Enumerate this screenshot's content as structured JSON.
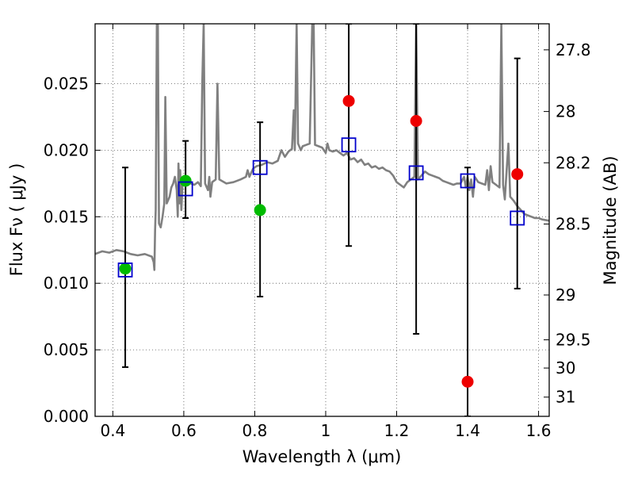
{
  "chart_data": {
    "type": "scatter",
    "title": "",
    "xlabel": "Wavelength  λ (μm)",
    "ylabel": "Flux  Fν  ( μJy )",
    "y2label": "Magnitude (AB)",
    "xlim": [
      0.35,
      1.63
    ],
    "ylim": [
      0.0,
      0.0295
    ],
    "grid": true,
    "x_ticks": [
      {
        "value": 0.4,
        "label": "0.4"
      },
      {
        "value": 0.6,
        "label": "0.6"
      },
      {
        "value": 0.8,
        "label": "0.8"
      },
      {
        "value": 1.0,
        "label": "1"
      },
      {
        "value": 1.2,
        "label": "1.2"
      },
      {
        "value": 1.4,
        "label": "1.4"
      },
      {
        "value": 1.6,
        "label": "1.6"
      }
    ],
    "y_ticks": [
      {
        "value": 0.0,
        "label": "0.000"
      },
      {
        "value": 0.005,
        "label": "0.005"
      },
      {
        "value": 0.01,
        "label": "0.010"
      },
      {
        "value": 0.015,
        "label": "0.015"
      },
      {
        "value": 0.02,
        "label": "0.020"
      },
      {
        "value": 0.025,
        "label": "0.025"
      }
    ],
    "y2_ticks": [
      {
        "value": 27.8,
        "label": "27.8"
      },
      {
        "value": 28.0,
        "label": "28"
      },
      {
        "value": 28.2,
        "label": "28.2"
      },
      {
        "value": 28.5,
        "label": "28.5"
      },
      {
        "value": 29.0,
        "label": "29"
      },
      {
        "value": 29.5,
        "label": "29.5"
      },
      {
        "value": 30.0,
        "label": "30"
      },
      {
        "value": 31.0,
        "label": "31"
      }
    ],
    "colors": {
      "spectrum": "#808080",
      "green": "#00bb00",
      "red": "#ee0000",
      "blue": "#0000cc",
      "errorbar": "#000000",
      "grid": "#555555"
    },
    "spectrum": [
      [
        0.35,
        0.0122
      ],
      [
        0.37,
        0.0124
      ],
      [
        0.39,
        0.0123
      ],
      [
        0.41,
        0.0125
      ],
      [
        0.43,
        0.0124
      ],
      [
        0.45,
        0.0122
      ],
      [
        0.47,
        0.0121
      ],
      [
        0.49,
        0.0122
      ],
      [
        0.51,
        0.012
      ],
      [
        0.515,
        0.0116
      ],
      [
        0.517,
        0.011
      ],
      [
        0.519,
        0.014
      ],
      [
        0.521,
        0.0155
      ],
      [
        0.524,
        0.0295
      ],
      [
        0.527,
        0.0295
      ],
      [
        0.53,
        0.0145
      ],
      [
        0.535,
        0.0142
      ],
      [
        0.54,
        0.015
      ],
      [
        0.545,
        0.016
      ],
      [
        0.548,
        0.024
      ],
      [
        0.552,
        0.016
      ],
      [
        0.56,
        0.0165
      ],
      [
        0.565,
        0.0172
      ],
      [
        0.57,
        0.0175
      ],
      [
        0.575,
        0.018
      ],
      [
        0.58,
        0.017
      ],
      [
        0.583,
        0.015
      ],
      [
        0.585,
        0.019
      ],
      [
        0.588,
        0.016
      ],
      [
        0.59,
        0.0185
      ],
      [
        0.593,
        0.0155
      ],
      [
        0.597,
        0.0178
      ],
      [
        0.61,
        0.0176
      ],
      [
        0.62,
        0.0175
      ],
      [
        0.63,
        0.0174
      ],
      [
        0.64,
        0.0176
      ],
      [
        0.648,
        0.0173
      ],
      [
        0.652,
        0.025
      ],
      [
        0.656,
        0.0295
      ],
      [
        0.66,
        0.0175
      ],
      [
        0.668,
        0.017
      ],
      [
        0.672,
        0.018
      ],
      [
        0.675,
        0.0165
      ],
      [
        0.68,
        0.0176
      ],
      [
        0.69,
        0.0178
      ],
      [
        0.695,
        0.025
      ],
      [
        0.7,
        0.0178
      ],
      [
        0.72,
        0.0175
      ],
      [
        0.74,
        0.0176
      ],
      [
        0.76,
        0.0178
      ],
      [
        0.775,
        0.018
      ],
      [
        0.78,
        0.0185
      ],
      [
        0.785,
        0.018
      ],
      [
        0.795,
        0.0186
      ],
      [
        0.805,
        0.0188
      ],
      [
        0.82,
        0.0189
      ],
      [
        0.835,
        0.0191
      ],
      [
        0.85,
        0.019
      ],
      [
        0.865,
        0.0192
      ],
      [
        0.875,
        0.02
      ],
      [
        0.885,
        0.0195
      ],
      [
        0.895,
        0.0199
      ],
      [
        0.905,
        0.0201
      ],
      [
        0.91,
        0.023
      ],
      [
        0.913,
        0.02
      ],
      [
        0.918,
        0.0295
      ],
      [
        0.922,
        0.0205
      ],
      [
        0.93,
        0.02
      ],
      [
        0.935,
        0.0203
      ],
      [
        0.945,
        0.0204
      ],
      [
        0.955,
        0.0205
      ],
      [
        0.962,
        0.0295
      ],
      [
        0.966,
        0.0295
      ],
      [
        0.97,
        0.0204
      ],
      [
        0.98,
        0.0203
      ],
      [
        0.99,
        0.0202
      ],
      [
        0.995,
        0.02
      ],
      [
        1.0,
        0.0198
      ],
      [
        1.005,
        0.0205
      ],
      [
        1.01,
        0.02
      ],
      [
        1.02,
        0.0199
      ],
      [
        1.03,
        0.02
      ],
      [
        1.04,
        0.0198
      ],
      [
        1.05,
        0.0196
      ],
      [
        1.06,
        0.0198
      ],
      [
        1.07,
        0.0193
      ],
      [
        1.08,
        0.0194
      ],
      [
        1.09,
        0.0191
      ],
      [
        1.1,
        0.0193
      ],
      [
        1.11,
        0.0189
      ],
      [
        1.12,
        0.019
      ],
      [
        1.13,
        0.0187
      ],
      [
        1.14,
        0.0188
      ],
      [
        1.15,
        0.0186
      ],
      [
        1.16,
        0.0187
      ],
      [
        1.17,
        0.0185
      ],
      [
        1.18,
        0.0184
      ],
      [
        1.19,
        0.0181
      ],
      [
        1.2,
        0.0176
      ],
      [
        1.21,
        0.0174
      ],
      [
        1.22,
        0.0172
      ],
      [
        1.23,
        0.0176
      ],
      [
        1.24,
        0.0178
      ],
      [
        1.25,
        0.018
      ],
      [
        1.255,
        0.0295
      ],
      [
        1.26,
        0.0178
      ],
      [
        1.27,
        0.0181
      ],
      [
        1.28,
        0.0184
      ],
      [
        1.29,
        0.0182
      ],
      [
        1.3,
        0.0181
      ],
      [
        1.31,
        0.018
      ],
      [
        1.32,
        0.0179
      ],
      [
        1.33,
        0.0177
      ],
      [
        1.34,
        0.0176
      ],
      [
        1.35,
        0.0175
      ],
      [
        1.36,
        0.0174
      ],
      [
        1.37,
        0.0175
      ],
      [
        1.38,
        0.0175
      ],
      [
        1.39,
        0.018
      ],
      [
        1.395,
        0.0172
      ],
      [
        1.4,
        0.018
      ],
      [
        1.405,
        0.017
      ],
      [
        1.41,
        0.0178
      ],
      [
        1.415,
        0.0165
      ],
      [
        1.42,
        0.018
      ],
      [
        1.43,
        0.0176
      ],
      [
        1.44,
        0.0175
      ],
      [
        1.45,
        0.0174
      ],
      [
        1.455,
        0.0185
      ],
      [
        1.46,
        0.017
      ],
      [
        1.465,
        0.0188
      ],
      [
        1.47,
        0.0176
      ],
      [
        1.48,
        0.0174
      ],
      [
        1.49,
        0.0172
      ],
      [
        1.495,
        0.0295
      ],
      [
        1.5,
        0.0174
      ],
      [
        1.505,
        0.0163
      ],
      [
        1.51,
        0.0185
      ],
      [
        1.515,
        0.0205
      ],
      [
        1.52,
        0.0165
      ],
      [
        1.53,
        0.0162
      ],
      [
        1.54,
        0.0158
      ],
      [
        1.55,
        0.0155
      ],
      [
        1.56,
        0.0152
      ],
      [
        1.57,
        0.0151
      ],
      [
        1.58,
        0.015
      ],
      [
        1.59,
        0.0149
      ],
      [
        1.6,
        0.0149
      ],
      [
        1.61,
        0.0148
      ],
      [
        1.63,
        0.0147
      ]
    ],
    "series": [
      {
        "marker": "circle",
        "color": "green",
        "points": [
          {
            "x": 0.435,
            "y": 0.0111
          },
          {
            "x": 0.605,
            "y": 0.0177
          },
          {
            "x": 0.815,
            "y": 0.0155
          }
        ]
      },
      {
        "marker": "circle",
        "color": "red",
        "points": [
          {
            "x": 1.065,
            "y": 0.0237
          },
          {
            "x": 1.255,
            "y": 0.0222
          },
          {
            "x": 1.4,
            "y": 0.0026
          },
          {
            "x": 1.54,
            "y": 0.0182
          }
        ]
      },
      {
        "marker": "open-square",
        "color": "blue",
        "points": [
          {
            "x": 0.435,
            "y": 0.011
          },
          {
            "x": 0.605,
            "y": 0.0171
          },
          {
            "x": 0.815,
            "y": 0.0187
          },
          {
            "x": 1.065,
            "y": 0.0204
          },
          {
            "x": 1.255,
            "y": 0.0183
          },
          {
            "x": 1.4,
            "y": 0.0177
          },
          {
            "x": 1.54,
            "y": 0.0149
          }
        ]
      }
    ],
    "errorbars": [
      {
        "x": 0.435,
        "ylow": 0.0037,
        "yhigh": 0.0187
      },
      {
        "x": 0.605,
        "ylow": 0.0149,
        "yhigh": 0.0207
      },
      {
        "x": 0.815,
        "ylow": 0.009,
        "yhigh": 0.0221
      },
      {
        "x": 1.065,
        "ylow": 0.0128,
        "yhigh": 0.0295
      },
      {
        "x": 1.255,
        "ylow": 0.0062,
        "yhigh": 0.0295
      },
      {
        "x": 1.4,
        "ylow": 0.0,
        "yhigh": 0.0187
      },
      {
        "x": 1.54,
        "ylow": 0.0096,
        "yhigh": 0.0269
      }
    ]
  }
}
